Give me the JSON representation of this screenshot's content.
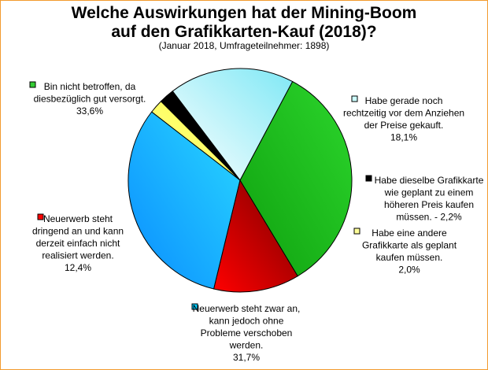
{
  "chart_data": {
    "type": "pie",
    "title_line1": "Welche Auswirkungen hat der Mining-Boom",
    "title_line2": "auf den Grafikkarten-Kauf (2018)?",
    "subtitle": "(Januar 2018, Umfrageteilnehmer: 1898)",
    "slices": [
      {
        "lines": [
          "Habe gerade noch",
          "rechtzeitig vor dem Anziehen",
          "der Preise gekauft.",
          "18,1%"
        ],
        "value": 18.1,
        "color": "#ffffff",
        "color2": "#7fe8f5",
        "swatch": "#ccffff"
      },
      {
        "lines": [
          "Habe dieselbe Grafikkarte",
          "wie geplant zu einem",
          "höheren Preis kaufen",
          "müssen. - 2,2%"
        ],
        "value": 2.2,
        "color": "#000000",
        "color2": "#000000",
        "swatch": "#000000"
      },
      {
        "lines": [
          "Habe eine andere",
          "Grafikkarte als geplant",
          "kaufen müssen.",
          "2,0%"
        ],
        "value": 2.0,
        "color": "#ffffa0",
        "color2": "#ffff33",
        "swatch": "#ffff99"
      },
      {
        "lines": [
          "Neuerwerb steht zwar an,",
          "kann jedoch ohne",
          "Probleme verschoben",
          "werden.",
          "31,7%"
        ],
        "value": 31.7,
        "color": "#0a8cff",
        "color2": "#29d8ff",
        "swatch": "#00ccff"
      },
      {
        "lines": [
          "Neuerwerb steht",
          "dringend an und kann",
          "derzeit einfach nicht",
          "realisiert werden.",
          "12,4%"
        ],
        "value": 12.4,
        "color": "#ff0000",
        "color2": "#780000",
        "swatch": "#ff0000"
      },
      {
        "lines": [
          "Bin nicht betroffen, da",
          "diesbezüglich gut versorgt.",
          "33,6%"
        ],
        "value": 33.6,
        "color": "#0fa00f",
        "color2": "#2cd62c",
        "swatch": "#33cc33"
      }
    ],
    "start_angle_deg": 62
  }
}
